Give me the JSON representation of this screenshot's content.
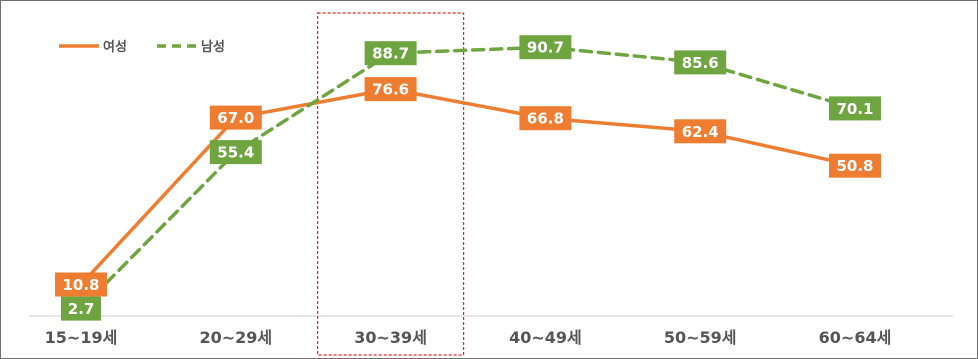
{
  "chart_data": {
    "type": "line",
    "categories": [
      "15~19세",
      "20~29세",
      "30~39세",
      "40~49세",
      "50~59세",
      "60~64세"
    ],
    "series": [
      {
        "name": "여성",
        "values": [
          10.8,
          67.0,
          76.6,
          66.8,
          62.4,
          50.8
        ],
        "color": "#ee7d31",
        "style": "solid"
      },
      {
        "name": "남성",
        "values": [
          2.7,
          55.4,
          88.7,
          90.7,
          85.6,
          70.1
        ],
        "color": "#6fa541",
        "style": "dashed"
      }
    ],
    "legend_position": "top-left",
    "highlight_category": "30~39세",
    "highlight_color": "#e0262b",
    "ylim": [
      0,
      100
    ],
    "grid": false
  }
}
